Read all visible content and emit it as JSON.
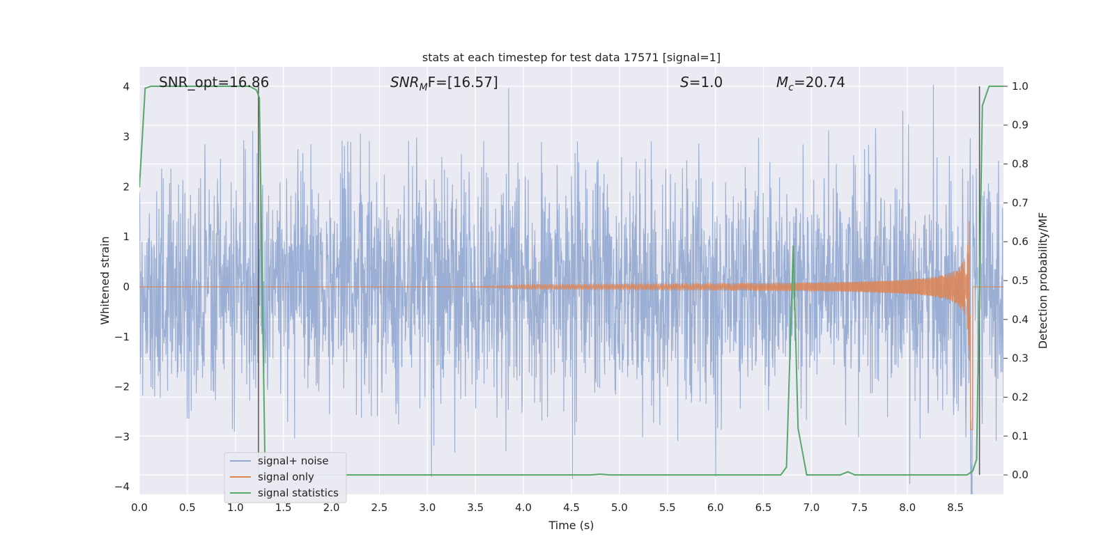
{
  "chart_data": {
    "type": "line",
    "title": "stats at each timestep for test data 17571 [signal=1]",
    "xlabel": "Time (s)",
    "ylabel": "Whitened strain",
    "y2label": "Detection probability/MF",
    "xlim": [
      0.0,
      9.0
    ],
    "ylim": [
      -4.15,
      4.4
    ],
    "y2lim": [
      -0.05,
      1.05
    ],
    "x_ticks": [
      "0.0",
      "0.5",
      "1.0",
      "1.5",
      "2.0",
      "2.5",
      "3.0",
      "3.5",
      "4.0",
      "4.5",
      "5.0",
      "5.5",
      "6.0",
      "6.5",
      "7.0",
      "7.5",
      "8.0",
      "8.5"
    ],
    "y_ticks": [
      "4",
      "3",
      "2",
      "1",
      "0",
      "−1",
      "−2",
      "−3",
      "−4"
    ],
    "y2_ticks": [
      "1.0",
      "0.9",
      "0.8",
      "0.7",
      "0.6",
      "0.5",
      "0.4",
      "0.3",
      "0.2",
      "0.1",
      "0.0"
    ],
    "grid": true,
    "legend_position": "lower-left",
    "annotations": [
      {
        "id": "snr_opt",
        "text": "SNR_opt=16.86"
      },
      {
        "id": "snr_mf",
        "base": "SNR",
        "sub": "M",
        "rest": "F=[16.57]"
      },
      {
        "id": "s",
        "base": "S",
        "rest": "=1.0"
      },
      {
        "id": "mc",
        "base": "M",
        "sub": "c",
        "rest": "=20.74"
      }
    ],
    "vlines": [
      1.24,
      8.75
    ],
    "series": [
      {
        "name": "signal+ noise",
        "color": "#92a8d1",
        "amplitude_band": [
          -1.5,
          1.7
        ],
        "peak_max": 4.0,
        "peak_min": -3.8
      },
      {
        "name": "signal only",
        "color": "#dd8452",
        "chirp_start": 4.0,
        "merger_time": 8.66,
        "peak_amplitude": 3.4
      },
      {
        "name": "signal statistics",
        "color": "#55a868",
        "axis": "right",
        "x": [
          0.0,
          0.06,
          0.12,
          1.15,
          1.22,
          1.25,
          1.31,
          1.36,
          4.7,
          4.8,
          4.9,
          6.68,
          6.74,
          6.81,
          6.86,
          6.95,
          7.3,
          7.38,
          7.45,
          8.62,
          8.68,
          8.72,
          8.78,
          8.85,
          9.0
        ],
        "y": [
          0.74,
          0.995,
          1.0,
          1.0,
          0.99,
          0.97,
          0.0,
          0.0,
          0.0,
          0.002,
          0.0,
          0.0,
          0.02,
          0.59,
          0.12,
          0.0,
          0.0,
          0.008,
          0.0,
          0.0,
          0.01,
          0.04,
          0.95,
          1.0,
          1.0
        ]
      }
    ]
  }
}
